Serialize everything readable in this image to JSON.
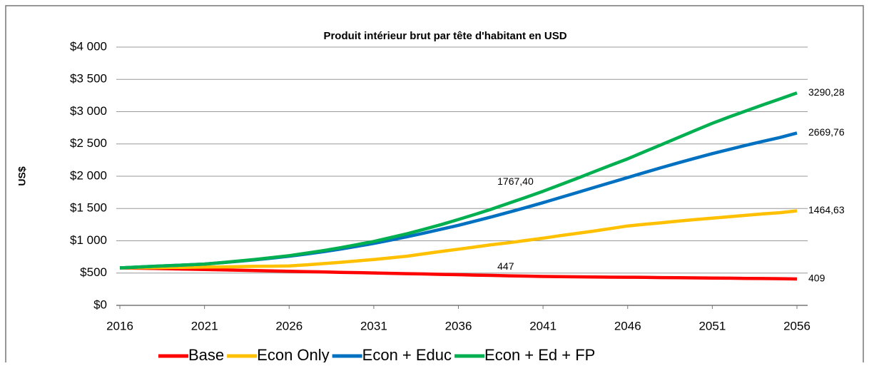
{
  "chart_data": {
    "type": "line",
    "title": "Produit intérieur brut par tête d'habitant en USD",
    "y_label": "US$",
    "x": [
      2016,
      2017,
      2018,
      2019,
      2020,
      2021,
      2022,
      2023,
      2024,
      2025,
      2026,
      2027,
      2028,
      2029,
      2030,
      2031,
      2032,
      2033,
      2034,
      2035,
      2036,
      2037,
      2038,
      2039,
      2040,
      2041,
      2042,
      2043,
      2044,
      2045,
      2046,
      2047,
      2048,
      2049,
      2050,
      2051,
      2052,
      2053,
      2054,
      2055,
      2056
    ],
    "series": [
      {
        "name": "Base",
        "color": "#ff0000",
        "values": [
          580,
          576,
          571,
          566,
          560,
          555,
          550,
          544,
          539,
          534,
          528,
          523,
          518,
          512,
          507,
          502,
          496,
          491,
          486,
          480,
          475,
          469,
          464,
          458,
          453,
          447,
          445,
          442,
          440,
          437,
          435,
          433,
          430,
          428,
          425,
          423,
          421,
          418,
          416,
          413,
          409
        ]
      },
      {
        "name": "Econ Only",
        "color": "#ffc000",
        "values": [
          580,
          582,
          584,
          587,
          590,
          593,
          596,
          600,
          604,
          607,
          610,
          628,
          646,
          666,
          688,
          710,
          736,
          762,
          800,
          835,
          870,
          905,
          940,
          970,
          1005,
          1040,
          1080,
          1115,
          1150,
          1190,
          1230,
          1255,
          1280,
          1305,
          1328,
          1350,
          1372,
          1395,
          1418,
          1435,
          1464.63
        ]
      },
      {
        "name": "Econ + Educ",
        "color": "#0070c0",
        "values": [
          580,
          592,
          604,
          616,
          628,
          640,
          660,
          682,
          706,
          732,
          760,
          794,
          830,
          870,
          914,
          960,
          1010,
          1064,
          1120,
          1180,
          1240,
          1306,
          1374,
          1444,
          1516,
          1590,
          1668,
          1746,
          1824,
          1902,
          1980,
          2058,
          2134,
          2208,
          2280,
          2350,
          2416,
          2480,
          2540,
          2600,
          2669.76
        ]
      },
      {
        "name": "Econ + Ed + FP",
        "color": "#00b050",
        "values": [
          580,
          592,
          604,
          616,
          628,
          640,
          662,
          686,
          712,
          740,
          770,
          808,
          848,
          892,
          940,
          990,
          1050,
          1112,
          1180,
          1252,
          1330,
          1410,
          1494,
          1584,
          1674,
          1767.4,
          1866,
          1966,
          2068,
          2170,
          2270,
          2380,
          2490,
          2600,
          2710,
          2820,
          2918,
          3012,
          3106,
          3198,
          3290.28
        ]
      }
    ],
    "annotations": [
      {
        "x": 2056,
        "value": 3290.28,
        "label": "3290,28"
      },
      {
        "x": 2056,
        "value": 2669.76,
        "label": "2669,76"
      },
      {
        "x": 2056,
        "value": 1464.63,
        "label": "1464,63"
      },
      {
        "x": 2056,
        "value": 409,
        "label": "409"
      },
      {
        "x": 2041,
        "value": 1767.4,
        "label": "1767,40"
      },
      {
        "x": 2041,
        "value": 447,
        "label": "447"
      }
    ],
    "xlim": [
      2016,
      2056
    ],
    "xticks": [
      2016,
      2021,
      2026,
      2031,
      2036,
      2041,
      2046,
      2051,
      2056
    ],
    "ylim": [
      0,
      4000
    ],
    "yticks": [
      {
        "value": 0,
        "label": "$0"
      },
      {
        "value": 500,
        "label": "$500"
      },
      {
        "value": 1000,
        "label": "$1 000"
      },
      {
        "value": 1500,
        "label": "$1 500"
      },
      {
        "value": 2000,
        "label": "$2 000"
      },
      {
        "value": 2500,
        "label": "$2 500"
      },
      {
        "value": 3000,
        "label": "$3 000"
      },
      {
        "value": 3500,
        "label": "$3 500"
      },
      {
        "value": 4000,
        "label": "$4 000"
      }
    ],
    "grid": true,
    "legend": "bottom"
  }
}
